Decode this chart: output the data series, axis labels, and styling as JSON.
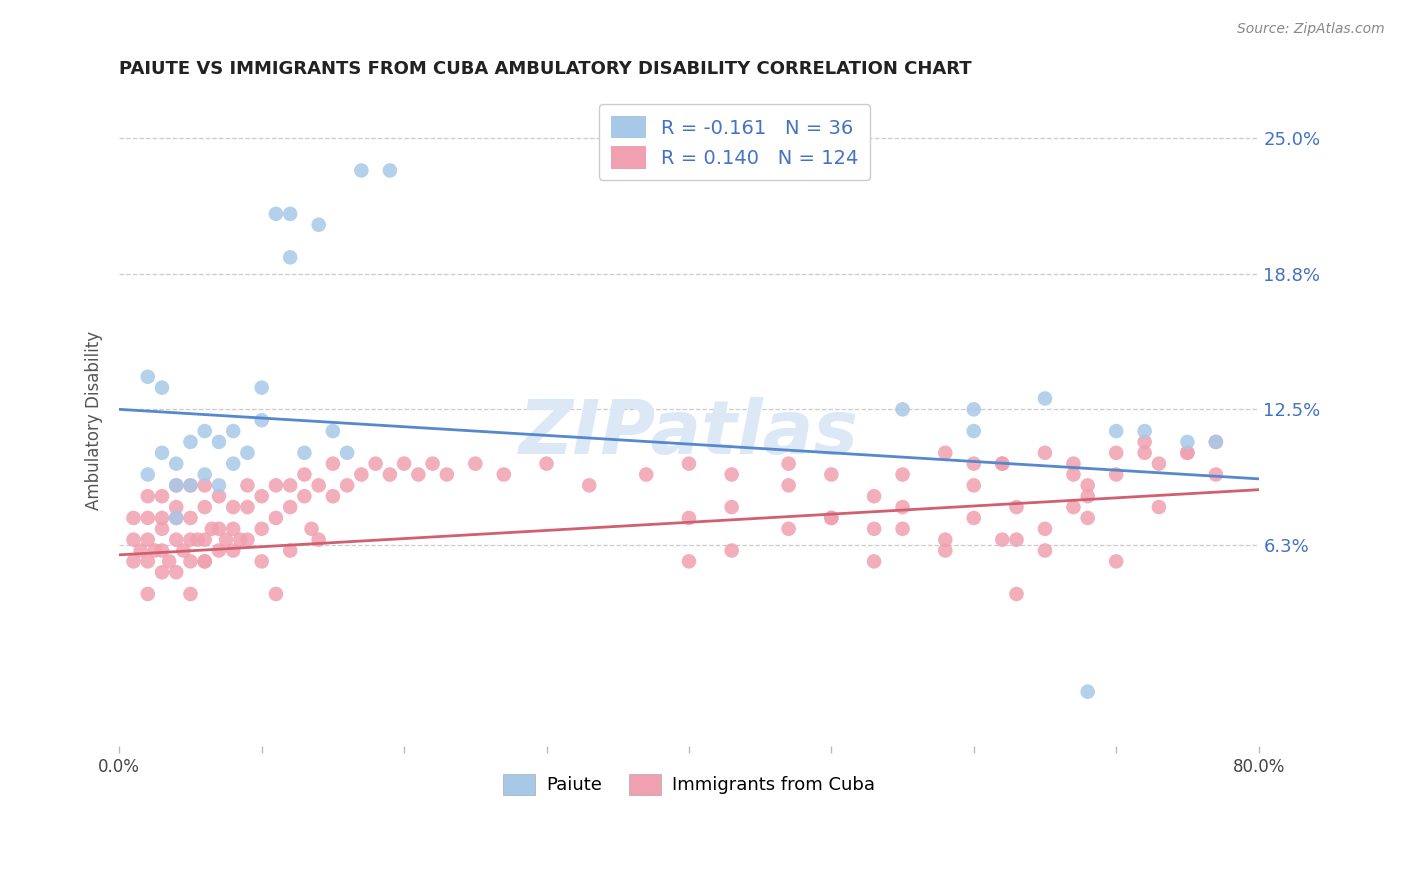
{
  "title": "PAIUTE VS IMMIGRANTS FROM CUBA AMBULATORY DISABILITY CORRELATION CHART",
  "source": "Source: ZipAtlas.com",
  "ylabel": "Ambulatory Disability",
  "xlabel_paiute": "Paiute",
  "xlabel_cuba": "Immigrants from Cuba",
  "xmin": 0.0,
  "xmax": 0.8,
  "ymin": -0.03,
  "ymax": 0.27,
  "ytick_vals": [
    0.0,
    0.0625,
    0.125,
    0.1875,
    0.25
  ],
  "ytick_labels": [
    "",
    "6.3%",
    "12.5%",
    "18.8%",
    "25.0%"
  ],
  "blue_R": -0.161,
  "blue_N": 36,
  "pink_R": 0.14,
  "pink_N": 124,
  "blue_color": "#a8c8e8",
  "blue_line_color": "#5588cc",
  "pink_color": "#f0a0b0",
  "pink_line_color": "#d06070",
  "text_color": "#4472c4",
  "watermark_color": "#dce8f5",
  "blue_line_y0": 0.125,
  "blue_line_y1": 0.093,
  "pink_line_y0": 0.058,
  "pink_line_y1": 0.088,
  "blue_scatter_x": [
    0.02,
    0.03,
    0.04,
    0.04,
    0.05,
    0.05,
    0.06,
    0.06,
    0.07,
    0.07,
    0.08,
    0.08,
    0.09,
    0.1,
    0.11,
    0.12,
    0.13,
    0.14,
    0.15,
    0.16,
    0.17,
    0.19,
    0.02,
    0.03,
    0.04,
    0.1,
    0.12,
    0.55,
    0.6,
    0.6,
    0.65,
    0.68,
    0.7,
    0.72,
    0.75,
    0.77
  ],
  "blue_scatter_y": [
    0.095,
    0.105,
    0.075,
    0.1,
    0.09,
    0.11,
    0.095,
    0.115,
    0.09,
    0.11,
    0.1,
    0.115,
    0.105,
    0.12,
    0.215,
    0.195,
    0.105,
    0.21,
    0.115,
    0.105,
    0.235,
    0.235,
    0.14,
    0.135,
    0.09,
    0.135,
    0.215,
    0.125,
    0.115,
    0.125,
    0.13,
    -0.005,
    0.115,
    0.115,
    0.11,
    0.11
  ],
  "pink_scatter_x": [
    0.01,
    0.01,
    0.01,
    0.015,
    0.02,
    0.02,
    0.02,
    0.02,
    0.02,
    0.025,
    0.03,
    0.03,
    0.03,
    0.03,
    0.03,
    0.035,
    0.04,
    0.04,
    0.04,
    0.04,
    0.04,
    0.045,
    0.05,
    0.05,
    0.05,
    0.05,
    0.05,
    0.055,
    0.06,
    0.06,
    0.06,
    0.06,
    0.06,
    0.065,
    0.07,
    0.07,
    0.07,
    0.075,
    0.08,
    0.08,
    0.08,
    0.085,
    0.09,
    0.09,
    0.09,
    0.1,
    0.1,
    0.1,
    0.11,
    0.11,
    0.11,
    0.12,
    0.12,
    0.12,
    0.13,
    0.13,
    0.135,
    0.14,
    0.14,
    0.15,
    0.15,
    0.16,
    0.17,
    0.18,
    0.19,
    0.2,
    0.21,
    0.22,
    0.23,
    0.25,
    0.27,
    0.3,
    0.33,
    0.37,
    0.4,
    0.43,
    0.47,
    0.5,
    0.53,
    0.55,
    0.58,
    0.6,
    0.62,
    0.63,
    0.65,
    0.67,
    0.68,
    0.7,
    0.72,
    0.73,
    0.75,
    0.77,
    0.4,
    0.43,
    0.47,
    0.5,
    0.53,
    0.55,
    0.58,
    0.6,
    0.62,
    0.63,
    0.65,
    0.67,
    0.68,
    0.7,
    0.72,
    0.73,
    0.75,
    0.77,
    0.4,
    0.43,
    0.47,
    0.5,
    0.53,
    0.55,
    0.58,
    0.6,
    0.62,
    0.63,
    0.65,
    0.67,
    0.68,
    0.7
  ],
  "pink_scatter_y": [
    0.055,
    0.065,
    0.075,
    0.06,
    0.04,
    0.055,
    0.065,
    0.075,
    0.085,
    0.06,
    0.05,
    0.06,
    0.07,
    0.075,
    0.085,
    0.055,
    0.05,
    0.065,
    0.075,
    0.08,
    0.09,
    0.06,
    0.055,
    0.065,
    0.075,
    0.09,
    0.04,
    0.065,
    0.055,
    0.065,
    0.08,
    0.09,
    0.055,
    0.07,
    0.06,
    0.07,
    0.085,
    0.065,
    0.06,
    0.07,
    0.08,
    0.065,
    0.065,
    0.08,
    0.09,
    0.07,
    0.085,
    0.055,
    0.075,
    0.09,
    0.04,
    0.08,
    0.09,
    0.06,
    0.085,
    0.095,
    0.07,
    0.09,
    0.065,
    0.085,
    0.1,
    0.09,
    0.095,
    0.1,
    0.095,
    0.1,
    0.095,
    0.1,
    0.095,
    0.1,
    0.095,
    0.1,
    0.09,
    0.095,
    0.1,
    0.095,
    0.1,
    0.095,
    0.085,
    0.095,
    0.105,
    0.1,
    0.1,
    0.065,
    0.105,
    0.1,
    0.085,
    0.105,
    0.11,
    0.1,
    0.105,
    0.11,
    0.075,
    0.08,
    0.09,
    0.075,
    0.07,
    0.08,
    0.065,
    0.09,
    0.1,
    0.08,
    0.07,
    0.095,
    0.075,
    0.095,
    0.105,
    0.08,
    0.105,
    0.095,
    0.055,
    0.06,
    0.07,
    0.075,
    0.055,
    0.07,
    0.06,
    0.075,
    0.065,
    0.04,
    0.06,
    0.08,
    0.09,
    0.055
  ]
}
